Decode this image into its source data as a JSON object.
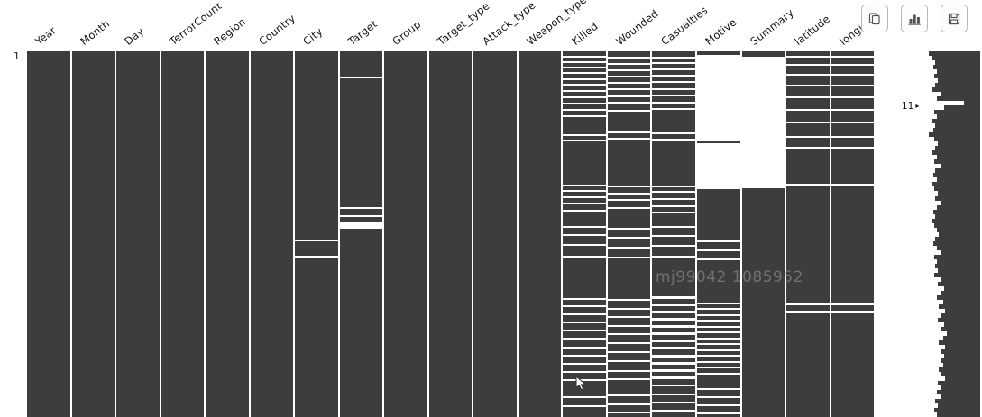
{
  "toolbar": {
    "buttons": [
      {
        "icon": "copy-icon"
      },
      {
        "icon": "bar-chart-icon"
      },
      {
        "icon": "save-icon"
      }
    ]
  },
  "matrix": {
    "row_start_label": "1",
    "min_row_label": "11",
    "watermark": "mj99042 1085952",
    "colors": {
      "filled": "#3d3d3d",
      "background": "#ffffff"
    },
    "columns": [
      {
        "label": "Year",
        "stripes": []
      },
      {
        "label": "Month",
        "stripes": []
      },
      {
        "label": "Day",
        "stripes": []
      },
      {
        "label": "TerrorCount",
        "stripes": []
      },
      {
        "label": "Region",
        "stripes": []
      },
      {
        "label": "Country",
        "stripes": []
      },
      {
        "label": "City",
        "stripes": [
          [
            51.5,
            2
          ],
          [
            55.8,
            3
          ]
        ]
      },
      {
        "label": "Target",
        "stripes": [
          [
            6.8,
            2
          ],
          [
            42.5,
            2
          ],
          [
            44.8,
            2
          ],
          [
            46.8,
            7
          ]
        ]
      },
      {
        "label": "Group",
        "stripes": []
      },
      {
        "label": "Target_type",
        "stripes": []
      },
      {
        "label": "Attack_type",
        "stripes": []
      },
      {
        "label": "Weapon_type",
        "stripes": []
      },
      {
        "label": "Killed",
        "stripes": [
          [
            1.2,
            2
          ],
          [
            2.7,
            2
          ],
          [
            4.2,
            2
          ],
          [
            5.7,
            2
          ],
          [
            7.3,
            2
          ],
          [
            8.9,
            2
          ],
          [
            10.5,
            2
          ],
          [
            12.2,
            2
          ],
          [
            14.0,
            2
          ],
          [
            15.8,
            2
          ],
          [
            17.6,
            2
          ],
          [
            22.7,
            2
          ],
          [
            24.2,
            2
          ],
          [
            36.4,
            2
          ],
          [
            38.0,
            2
          ],
          [
            39.7,
            2
          ],
          [
            41.5,
            2
          ],
          [
            43.4,
            2
          ],
          [
            47.7,
            2
          ],
          [
            49.9,
            2
          ],
          [
            52.7,
            2
          ],
          [
            55.8,
            2
          ],
          [
            67.4,
            2
          ],
          [
            69.5,
            2
          ],
          [
            71.7,
            2
          ],
          [
            74.0,
            2
          ],
          [
            76.2,
            2
          ],
          [
            78.4,
            2
          ],
          [
            80.7,
            2
          ],
          [
            83.0,
            2
          ],
          [
            85.3,
            2
          ],
          [
            87.5,
            2
          ],
          [
            89.7,
            2
          ],
          [
            94.4,
            2
          ],
          [
            96.9,
            2
          ]
        ]
      },
      {
        "label": "Wounded",
        "stripes": [
          [
            1.6,
            2
          ],
          [
            3.2,
            2
          ],
          [
            4.9,
            2
          ],
          [
            6.6,
            2
          ],
          [
            8.4,
            2
          ],
          [
            10.2,
            2
          ],
          [
            12.0,
            2
          ],
          [
            13.9,
            2
          ],
          [
            15.9,
            2
          ],
          [
            21.9,
            2
          ],
          [
            23.7,
            2
          ],
          [
            36.8,
            2
          ],
          [
            38.6,
            2
          ],
          [
            40.5,
            2
          ],
          [
            42.5,
            2
          ],
          [
            48.3,
            2
          ],
          [
            50.7,
            2
          ],
          [
            53.4,
            2
          ],
          [
            56.2,
            2
          ],
          [
            67.8,
            2
          ],
          [
            70.1,
            2
          ],
          [
            72.4,
            2
          ],
          [
            74.8,
            2
          ],
          [
            77.2,
            2
          ],
          [
            79.6,
            2
          ],
          [
            82.1,
            2
          ],
          [
            84.6,
            2
          ],
          [
            87.1,
            2
          ],
          [
            89.5,
            2
          ],
          [
            93.8,
            2
          ],
          [
            96.2,
            2
          ],
          [
            98.5,
            2
          ]
        ]
      },
      {
        "label": "Casualties",
        "stripes": [
          [
            1.4,
            2
          ],
          [
            3.0,
            2
          ],
          [
            4.7,
            2
          ],
          [
            6.4,
            2
          ],
          [
            8.2,
            2
          ],
          [
            10.0,
            2
          ],
          [
            11.8,
            2
          ],
          [
            13.7,
            2
          ],
          [
            15.6,
            2
          ],
          [
            22.2,
            2
          ],
          [
            23.9,
            2
          ],
          [
            36.6,
            2
          ],
          [
            38.3,
            2
          ],
          [
            40.1,
            2
          ],
          [
            42.0,
            2
          ],
          [
            43.9,
            2
          ],
          [
            47.9,
            2
          ],
          [
            50.3,
            2
          ],
          [
            53.0,
            2
          ],
          [
            56.0,
            2
          ],
          [
            66.9,
            3
          ],
          [
            68.9,
            3
          ],
          [
            70.9,
            3
          ],
          [
            72.9,
            3
          ],
          [
            74.9,
            3
          ],
          [
            76.9,
            3
          ],
          [
            78.9,
            3
          ],
          [
            80.9,
            3
          ],
          [
            82.9,
            3
          ],
          [
            84.9,
            3
          ],
          [
            86.9,
            3
          ],
          [
            88.9,
            3
          ],
          [
            91.2,
            2
          ],
          [
            93.5,
            2
          ],
          [
            95.8,
            2
          ],
          [
            98.0,
            2
          ]
        ]
      },
      {
        "label": "Motive",
        "stripes": [
          [
            1.0,
            95
          ],
          [
            25.1,
            51
          ],
          [
            51.8,
            2
          ],
          [
            54.2,
            2
          ],
          [
            56.6,
            2
          ],
          [
            68.7,
            2
          ],
          [
            70.3,
            2
          ],
          [
            71.9,
            2
          ],
          [
            73.5,
            2
          ],
          [
            75.1,
            2
          ],
          [
            76.7,
            2
          ],
          [
            78.3,
            2
          ],
          [
            79.9,
            2
          ],
          [
            81.5,
            2
          ],
          [
            83.1,
            2
          ],
          [
            84.7,
            2
          ],
          [
            86.3,
            2
          ],
          [
            87.9,
            2
          ],
          [
            92.1,
            2
          ],
          [
            94.3,
            2
          ],
          [
            96.5,
            2
          ],
          [
            98.7,
            2
          ]
        ]
      },
      {
        "label": "Summary",
        "stripes": [
          [
            1.4,
            146
          ]
        ]
      },
      {
        "label": "latitude",
        "stripes": [
          [
            1.3,
            2
          ],
          [
            3.5,
            2
          ],
          [
            6.2,
            2
          ],
          [
            9.1,
            2
          ],
          [
            12.3,
            2
          ],
          [
            15.7,
            2
          ],
          [
            19.3,
            2
          ],
          [
            23.1,
            2
          ],
          [
            26.1,
            2
          ],
          [
            36.1,
            2
          ],
          [
            68.8,
            3
          ],
          [
            71.0,
            3
          ]
        ]
      },
      {
        "label": "longi",
        "stripes": [
          [
            1.3,
            2
          ],
          [
            3.5,
            2
          ],
          [
            6.2,
            2
          ],
          [
            9.1,
            2
          ],
          [
            12.3,
            2
          ],
          [
            15.7,
            2
          ],
          [
            19.3,
            2
          ],
          [
            23.1,
            2
          ],
          [
            26.1,
            2
          ],
          [
            36.1,
            2
          ],
          [
            68.8,
            3
          ],
          [
            71.0,
            3
          ]
        ]
      }
    ]
  },
  "sparkline": {
    "values": [
      1,
      0.95,
      0.88,
      0.92,
      0.85,
      0.9,
      0.82,
      0.88,
      0.95,
      0.78,
      0.85,
      0.32,
      0.7,
      0.9,
      0.85,
      0.95,
      0.88,
      0.92,
      1,
      0.9,
      0.82,
      0.88,
      0.95,
      0.85,
      0.9,
      0.78,
      0.88,
      0.92,
      0.85,
      0.95,
      0.9,
      0.82,
      0.88,
      0.78,
      0.85,
      0.92,
      0.88,
      0.95,
      0.9,
      0.85,
      0.8,
      0.88,
      0.92,
      0.85,
      0.78,
      0.9,
      0.85,
      0.88,
      0.82,
      0.9,
      0.75,
      0.82,
      0.7,
      0.78,
      0.85,
      0.72,
      0.8,
      0.68,
      0.75,
      0.82,
      0.7,
      0.78,
      0.65,
      0.72,
      0.8,
      0.68,
      0.75,
      0.7,
      0.78,
      0.72,
      0.8,
      0.75,
      0.68,
      0.82,
      0.75,
      0.85,
      0.78,
      0.88,
      0.82,
      0.9,
      0.85
    ]
  },
  "chart_data": {
    "type": "heatmap",
    "title": "",
    "columns": [
      "Year",
      "Month",
      "Day",
      "TerrorCount",
      "Region",
      "Country",
      "City",
      "Target",
      "Group",
      "Target_type",
      "Attack_type",
      "Weapon_type",
      "Killed",
      "Wounded",
      "Casualties",
      "Motive",
      "Summary",
      "latitude",
      "longi"
    ],
    "missing_fraction_estimate": [
      0,
      0,
      0,
      0,
      0,
      0,
      0.01,
      0.03,
      0,
      0,
      0,
      0,
      0.12,
      0.12,
      0.15,
      0.45,
      0.37,
      0.06,
      0.06
    ],
    "first_row_label": "1",
    "min_row_filled_label": "11",
    "legend_position": "none",
    "grid": false
  }
}
